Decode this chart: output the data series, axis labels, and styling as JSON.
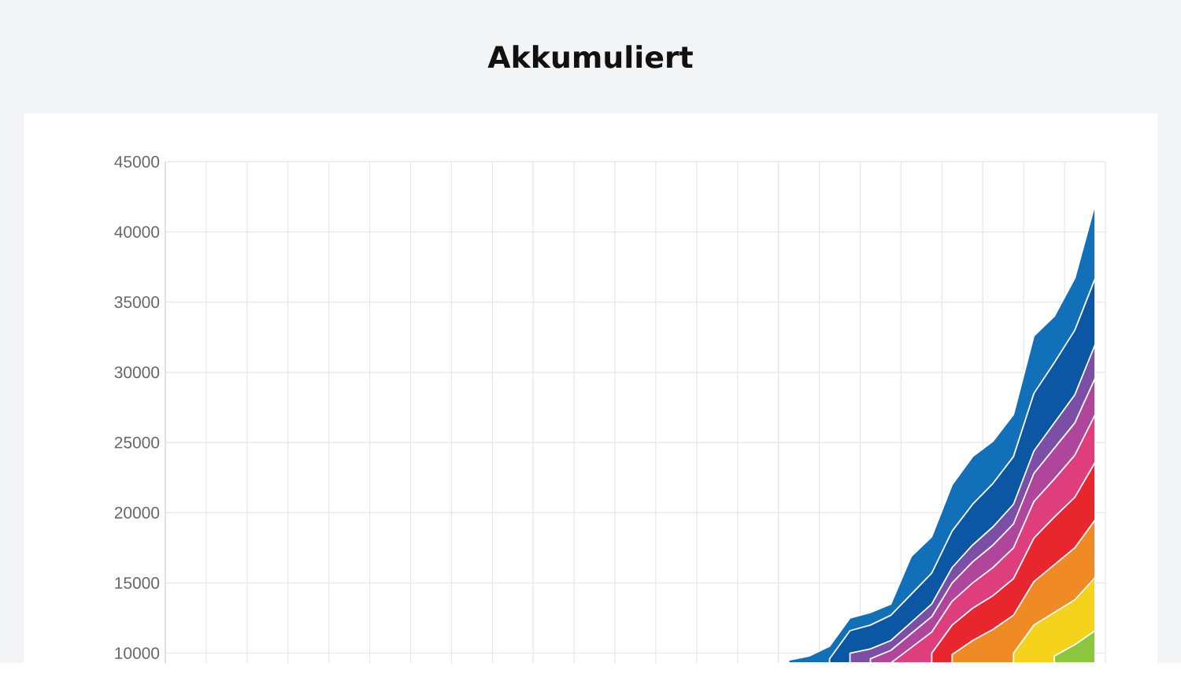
{
  "chart_data": {
    "type": "area",
    "title": "Akkumuliert",
    "categories": [
      null,
      null,
      null,
      null,
      null,
      null,
      null,
      null,
      null,
      null,
      null,
      null,
      null,
      null,
      null,
      null,
      null,
      null,
      null,
      null,
      null,
      null,
      null,
      null,
      null,
      null,
      null,
      null,
      null,
      null,
      null,
      null,
      null,
      null,
      null,
      null,
      null,
      null,
      null,
      null,
      null,
      null,
      null,
      null,
      null,
      null
    ],
    "ylim": [
      9300,
      45000
    ],
    "yticks": [
      10000,
      15000,
      20000,
      25000,
      30000,
      35000,
      40000,
      45000
    ],
    "grid": true,
    "tick_labels": "y",
    "series": [
      {
        "color": "#1270b8",
        "values": [
          null,
          null,
          null,
          null,
          null,
          null,
          null,
          null,
          null,
          null,
          null,
          null,
          null,
          null,
          null,
          null,
          null,
          null,
          null,
          null,
          null,
          null,
          null,
          null,
          null,
          null,
          null,
          null,
          null,
          null,
          9500,
          9800,
          10500,
          12500,
          12900,
          13500,
          16900,
          18300,
          22000,
          24000,
          25100,
          27000,
          32600,
          34000,
          36700,
          42000
        ]
      },
      {
        "color": "#0b57a4",
        "values": [
          null,
          null,
          null,
          null,
          null,
          null,
          null,
          null,
          null,
          null,
          null,
          null,
          null,
          null,
          null,
          null,
          null,
          null,
          null,
          null,
          null,
          null,
          null,
          null,
          null,
          null,
          null,
          null,
          null,
          null,
          null,
          null,
          9600,
          11600,
          12000,
          12700,
          14200,
          15700,
          18700,
          20600,
          22100,
          24000,
          28500,
          30700,
          33000,
          36700
        ]
      },
      {
        "color": "#7b4fa6",
        "values": [
          null,
          null,
          null,
          null,
          null,
          null,
          null,
          null,
          null,
          null,
          null,
          null,
          null,
          null,
          null,
          null,
          null,
          null,
          null,
          null,
          null,
          null,
          null,
          null,
          null,
          null,
          null,
          null,
          null,
          null,
          null,
          null,
          null,
          10000,
          10300,
          10900,
          12200,
          13500,
          16100,
          17700,
          19000,
          20600,
          24400,
          26400,
          28400,
          32000
        ]
      },
      {
        "color": "#b0459c",
        "values": [
          null,
          null,
          null,
          null,
          null,
          null,
          null,
          null,
          null,
          null,
          null,
          null,
          null,
          null,
          null,
          null,
          null,
          null,
          null,
          null,
          null,
          null,
          null,
          null,
          null,
          null,
          null,
          null,
          null,
          null,
          null,
          null,
          null,
          null,
          9600,
          10200,
          11400,
          12600,
          15000,
          16500,
          17700,
          19200,
          22800,
          24600,
          26400,
          29600
        ]
      },
      {
        "color": "#de3f7c",
        "values": [
          null,
          null,
          null,
          null,
          null,
          null,
          null,
          null,
          null,
          null,
          null,
          null,
          null,
          null,
          null,
          null,
          null,
          null,
          null,
          null,
          null,
          null,
          null,
          null,
          null,
          null,
          null,
          null,
          null,
          null,
          null,
          null,
          null,
          null,
          null,
          9300,
          10400,
          11500,
          13700,
          15000,
          16100,
          17500,
          20800,
          22400,
          24100,
          27000
        ]
      },
      {
        "color": "#e8262d",
        "values": [
          null,
          null,
          null,
          null,
          null,
          null,
          null,
          null,
          null,
          null,
          null,
          null,
          null,
          null,
          null,
          null,
          null,
          null,
          null,
          null,
          null,
          null,
          null,
          null,
          null,
          null,
          null,
          null,
          null,
          null,
          null,
          null,
          null,
          null,
          null,
          null,
          null,
          10000,
          12000,
          13200,
          14100,
          15300,
          18200,
          19700,
          21100,
          23600
        ]
      },
      {
        "color": "#f08a24",
        "values": [
          null,
          null,
          null,
          null,
          null,
          null,
          null,
          null,
          null,
          null,
          null,
          null,
          null,
          null,
          null,
          null,
          null,
          null,
          null,
          null,
          null,
          null,
          null,
          null,
          null,
          null,
          null,
          null,
          null,
          null,
          null,
          null,
          null,
          null,
          null,
          null,
          null,
          null,
          9900,
          10900,
          11700,
          12700,
          15100,
          16300,
          17500,
          19500
        ]
      },
      {
        "color": "#f5d21c",
        "values": [
          null,
          null,
          null,
          null,
          null,
          null,
          null,
          null,
          null,
          null,
          null,
          null,
          null,
          null,
          null,
          null,
          null,
          null,
          null,
          null,
          null,
          null,
          null,
          null,
          null,
          null,
          null,
          null,
          null,
          null,
          null,
          null,
          null,
          null,
          null,
          null,
          null,
          null,
          null,
          null,
          null,
          10000,
          12000,
          12900,
          13800,
          15400
        ]
      },
      {
        "color": "#8cc63f",
        "values": [
          null,
          null,
          null,
          null,
          null,
          null,
          null,
          null,
          null,
          null,
          null,
          null,
          null,
          null,
          null,
          null,
          null,
          null,
          null,
          null,
          null,
          null,
          null,
          null,
          null,
          null,
          null,
          null,
          null,
          null,
          null,
          null,
          null,
          null,
          null,
          null,
          null,
          null,
          null,
          null,
          null,
          null,
          null,
          9800,
          10600,
          11600
        ]
      }
    ]
  }
}
